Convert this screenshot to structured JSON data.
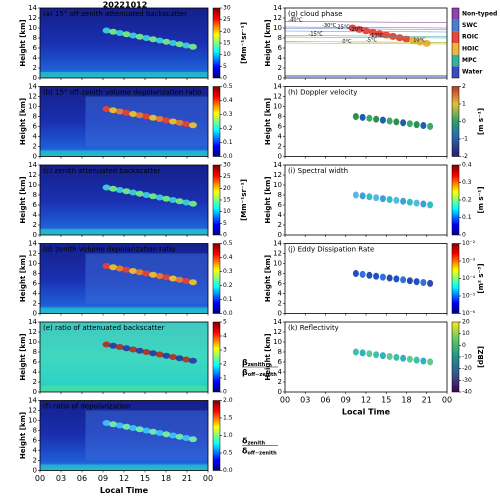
{
  "title": "20221012",
  "xlim": [
    0,
    24
  ],
  "xticks": [
    {
      "value": 0,
      "label": "00"
    },
    {
      "value": 3,
      "label": "03"
    },
    {
      "value": 6,
      "label": "06"
    },
    {
      "value": 9,
      "label": "09"
    },
    12,
    15,
    18,
    21,
    {
      "value": 24,
      "label": "00"
    }
  ],
  "xlabel": "Local Time",
  "ylim": [
    0,
    14
  ],
  "yticks": [
    0,
    2,
    4,
    6,
    8,
    10,
    12,
    14
  ],
  "ylabel": "Height [km]",
  "chart_data": [
    {
      "type": "heatmap",
      "title": "(a) 15° off-zenith attenuated backscatter",
      "clim": [
        0,
        30
      ],
      "cticks": [
        0,
        5,
        10,
        15,
        20,
        25,
        30
      ],
      "colorbar_label": "[Mm⁻¹sr⁻¹]"
    },
    {
      "type": "heatmap",
      "title": "(b) 15° off-zenith volume depolarization ratio",
      "clim": [
        0,
        0.5
      ],
      "cticks": [
        {
          "value": 0,
          "label": "0.0"
        },
        0.1,
        0.2,
        0.3,
        0.4,
        0.5
      ]
    },
    {
      "type": "heatmap",
      "title": "(c) zenith attenuated backscatter",
      "clim": [
        0,
        30
      ],
      "cticks": [
        0,
        5,
        10,
        15,
        20,
        25,
        30
      ],
      "colorbar_label": "[Mm⁻¹sr⁻¹]"
    },
    {
      "type": "heatmap",
      "title": "(d) zenith volume depolarization ratio",
      "clim": [
        0,
        0.5
      ],
      "cticks": [
        {
          "value": 0,
          "label": "0.0"
        },
        0.1,
        0.2,
        0.3,
        0.4,
        0.5
      ]
    },
    {
      "type": "heatmap",
      "title": "(e) ratio of attenuated backscatter",
      "clim": [
        0,
        5
      ],
      "cticks": [
        0,
        1,
        2,
        3,
        4,
        5
      ],
      "colorbar_fraction": {
        "numerator": "β",
        "numerator_sub": "zenith",
        "denominator": "β",
        "denominator_sub": "off−zenith"
      }
    },
    {
      "type": "heatmap",
      "title": "(f) ratio of depolarization",
      "clim": [
        0,
        2
      ],
      "cticks": [
        {
          "value": 0,
          "label": "0.0"
        },
        0.5,
        {
          "value": 1,
          "label": "1.0"
        },
        1.5,
        {
          "value": 2,
          "label": "2.0"
        }
      ],
      "colorbar_fraction": {
        "numerator": "δ",
        "numerator_sub": "zenith",
        "denominator": "δ",
        "denominator_sub": "off−zenith"
      }
    },
    {
      "type": "categorical",
      "title": "(g) cloud phase",
      "classes": [
        {
          "name": "Water",
          "color": "#3b4cc0"
        },
        {
          "name": "MPC",
          "color": "#36b3a0"
        },
        {
          "name": "HOIC",
          "color": "#f0b43c"
        },
        {
          "name": "ROIC",
          "color": "#e8473a"
        },
        {
          "name": "SWC",
          "color": "#4a7fd0"
        },
        {
          "name": "Non-typed",
          "color": "#8e44ad"
        }
      ],
      "contour_labels": [
        "-40°C",
        "-30°C",
        "-25°C",
        "-20°C",
        "-15°C",
        "-10°C",
        "-5°C",
        "0°C",
        "10°C"
      ]
    },
    {
      "type": "heatmap",
      "title": "(h) Doppler velocity",
      "clim": [
        -2,
        2
      ],
      "cticks": [
        -2,
        -1,
        0,
        1,
        2
      ],
      "colorbar_label": "[m s⁻¹]"
    },
    {
      "type": "heatmap",
      "title": "(i) Spectral width",
      "clim": [
        0,
        0.4
      ],
      "cticks": [
        0,
        0.1,
        0.2,
        0.3,
        0.4
      ],
      "colorbar_label": "[m s⁻¹]"
    },
    {
      "type": "heatmap",
      "title": "(j) Eddy Dissipation Rate",
      "log": true,
      "clim": [
        1e-06,
        0.01
      ],
      "cticks": [
        {
          "value": 1e-06,
          "label": "10⁻⁶"
        },
        {
          "value": 1e-05,
          "label": "10⁻⁵"
        },
        {
          "value": 0.0001,
          "label": "10⁻⁴"
        },
        {
          "value": 0.001,
          "label": "10⁻³"
        },
        {
          "value": 0.01,
          "label": "10⁻²"
        }
      ],
      "colorbar_label": "[m² s⁻³]"
    },
    {
      "type": "heatmap",
      "title": "(k) Reflectivity",
      "clim": [
        -40,
        20
      ],
      "cticks": [
        -40,
        -30,
        -20,
        -10,
        0,
        10,
        20
      ],
      "colorbar_label": "[dBZ]"
    }
  ]
}
